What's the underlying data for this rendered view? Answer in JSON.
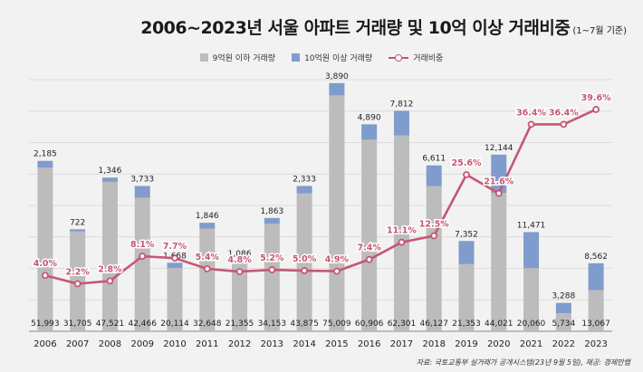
{
  "title": "2006~2023년 서울 아파트 거래량 및 10억 이상 거래비중",
  "subtitle": "(1~7월 기준)",
  "source": "자료: 국토교통부 실거래가 공개시스템(23년 9월 5일), 제공: 경제만랩",
  "colors": {
    "below": "#bcbcbc",
    "above": "#7f9ccc",
    "line": "#c55773",
    "ratio_text": "#c55773"
  },
  "legend": [
    {
      "label": "9억원 이하 거래량",
      "color": "#bcbcbc",
      "type": "bar"
    },
    {
      "label": "10억원 이상 거래량",
      "color": "#7f9ccc",
      "type": "bar"
    },
    {
      "label": "거래비중",
      "color": "#c55773",
      "type": "line"
    }
  ],
  "chart_data": {
    "type": "bar",
    "stacked": true,
    "categories": [
      "2006",
      "2007",
      "2008",
      "2009",
      "2010",
      "2011",
      "2012",
      "2013",
      "2014",
      "2015",
      "2016",
      "2017",
      "2018",
      "2019",
      "2020",
      "2021",
      "2022",
      "2023"
    ],
    "series": [
      {
        "name": "9억원 이하 거래량",
        "values": [
          51993,
          31705,
          47521,
          42466,
          20114,
          32648,
          21355,
          34153,
          43875,
          75009,
          60906,
          62301,
          46127,
          21353,
          44021,
          20060,
          5734,
          13067
        ]
      },
      {
        "name": "10억원 이상 거래량",
        "values": [
          2185,
          722,
          1346,
          3733,
          1668,
          1846,
          1086,
          1863,
          2333,
          3890,
          4890,
          7812,
          6611,
          7352,
          12144,
          11471,
          3288,
          8562
        ]
      }
    ],
    "line_series": {
      "name": "거래비중",
      "values": [
        4.0,
        2.2,
        2.8,
        8.1,
        7.7,
        5.4,
        4.8,
        5.2,
        5.0,
        4.9,
        7.4,
        11.1,
        12.5,
        25.6,
        21.6,
        36.4,
        36.4,
        39.6
      ],
      "labels": [
        "4.0%",
        "2.2%",
        "2.8%",
        "8.1%",
        "7.7%",
        "5.4%",
        "4.8%",
        "5.2%",
        "5.0%",
        "4.9%",
        "7.4%",
        "11.1%",
        "12.5%",
        "25.6%",
        "21.6%",
        "36.4%",
        "36.4%",
        "39.6%"
      ]
    },
    "below_labels": [
      "51,993",
      "31,705",
      "47,521",
      "42,466",
      "20,114",
      "32,648",
      "21,355",
      "34,153",
      "43,875",
      "75,009",
      "60,906",
      "62,301",
      "46,127",
      "21,353",
      "44,021",
      "20,060",
      "5,734",
      "13,067"
    ],
    "above_labels": [
      "2,185",
      "722",
      "1,346",
      "3,733",
      "1,668",
      "1,846",
      "1,086",
      "1,863",
      "2,333",
      "3,890",
      "4,890",
      "7,812",
      "6,611",
      "7,352",
      "12,144",
      "11,471",
      "3,288",
      "8,562"
    ],
    "ylim": [
      0,
      80000
    ],
    "y2lim": [
      -8,
      46
    ],
    "grid": true
  }
}
